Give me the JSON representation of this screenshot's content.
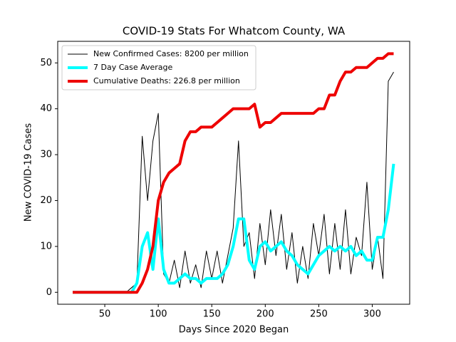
{
  "chart_data": {
    "type": "line",
    "title": "COVID-19 Stats For Whatcom County, WA",
    "x_label": "Days Since 2020 Began",
    "y_label": "New COVID-19 Cases",
    "x": [
      20,
      25,
      30,
      35,
      40,
      45,
      50,
      55,
      60,
      65,
      70,
      75,
      80,
      85,
      90,
      95,
      100,
      105,
      110,
      115,
      120,
      125,
      130,
      135,
      140,
      145,
      150,
      155,
      160,
      165,
      170,
      175,
      180,
      185,
      190,
      195,
      200,
      205,
      210,
      215,
      220,
      225,
      230,
      235,
      240,
      245,
      250,
      255,
      260,
      265,
      270,
      275,
      280,
      285,
      290,
      295,
      300,
      305,
      310,
      315,
      320
    ],
    "series": [
      {
        "name": "New Confirmed Cases: 8200 per million",
        "color": "#000000",
        "width": 1,
        "values": [
          0,
          0,
          0,
          0,
          0,
          0,
          0,
          0,
          0,
          0,
          0,
          1,
          2,
          34,
          20,
          33,
          39,
          4,
          2,
          7,
          1,
          9,
          2,
          6,
          1,
          9,
          3,
          9,
          2,
          8,
          14,
          33,
          10,
          13,
          3,
          15,
          6,
          18,
          8,
          17,
          5,
          13,
          2,
          10,
          3,
          15,
          8,
          17,
          4,
          15,
          5,
          18,
          4,
          12,
          8,
          24,
          5,
          12,
          3,
          46,
          48
        ]
      },
      {
        "name": "7 Day Case Average",
        "color": "#00ffff",
        "width": 4,
        "values": [
          0,
          0,
          0,
          0,
          0,
          0,
          0,
          0,
          0,
          0,
          0,
          0,
          2,
          10,
          13,
          5,
          16,
          5,
          2,
          2,
          3,
          4,
          3,
          3,
          2,
          3,
          3,
          3,
          4,
          6,
          10,
          16,
          16,
          7,
          5,
          10,
          11,
          9,
          10,
          11,
          9,
          8,
          6,
          5,
          4,
          6,
          8,
          9,
          10,
          9,
          10,
          9,
          10,
          8,
          9,
          7,
          7,
          12,
          12,
          18,
          28
        ]
      },
      {
        "name": "Cumulative Deaths: 226.8 per million",
        "color": "#ee0000",
        "width": 4,
        "values": [
          0,
          0,
          0,
          0,
          0,
          0,
          0,
          0,
          0,
          0,
          0,
          0,
          0,
          2,
          5,
          10,
          20,
          24,
          26,
          27,
          28,
          33,
          35,
          35,
          36,
          36,
          36,
          37,
          38,
          39,
          40,
          40,
          40,
          40,
          41,
          36,
          37,
          37,
          38,
          39,
          39,
          39,
          39,
          39,
          39,
          39,
          40,
          40,
          43,
          43,
          46,
          48,
          48,
          49,
          49,
          49,
          50,
          51,
          51,
          52,
          52
        ]
      }
    ],
    "xlim": [
      6,
      335
    ],
    "ylim": [
      -2.6,
      54.7
    ],
    "xticks": [
      50,
      100,
      150,
      200,
      250,
      300
    ],
    "yticks": [
      0,
      10,
      20,
      30,
      40,
      50
    ],
    "legend": "upper left"
  }
}
